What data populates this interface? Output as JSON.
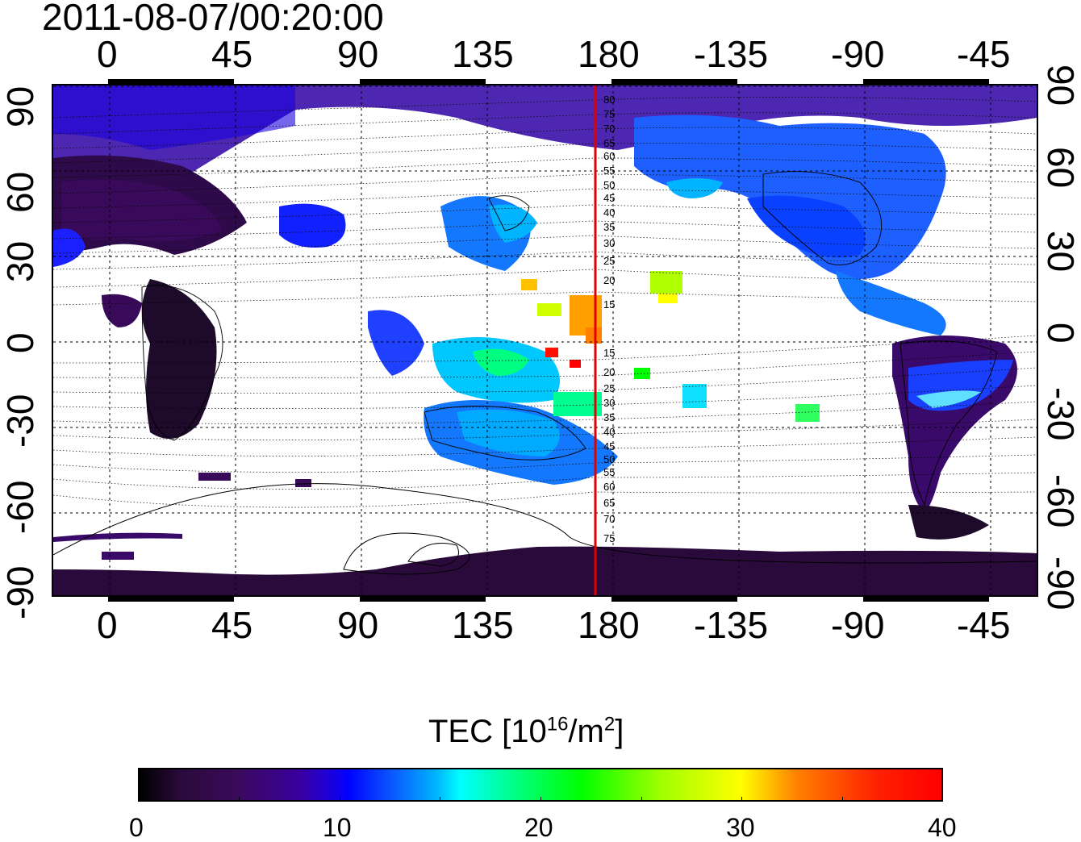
{
  "title": "2011-08-07/00:20:00",
  "top_axis_ticks": [
    "0",
    "45",
    "90",
    "135",
    "180",
    "-135",
    "-90",
    "-45"
  ],
  "bottom_axis_ticks": [
    "0",
    "45",
    "90",
    "135",
    "180",
    "-135",
    "-90",
    "-45"
  ],
  "left_axis_ticks": [
    "90",
    "60",
    "30",
    "0",
    "-30",
    "-60",
    "-90"
  ],
  "right_axis_ticks": [
    "90",
    "60",
    "30",
    "0",
    "-30",
    "-60",
    "-90"
  ],
  "contour_labels": [
    "80",
    "75",
    "70",
    "65",
    "60",
    "55",
    "50",
    "45",
    "40",
    "35",
    "30",
    "25",
    "20",
    "15",
    "15",
    "20",
    "25",
    "30",
    "35",
    "40",
    "45",
    "50",
    "55",
    "60",
    "65",
    "70",
    "75"
  ],
  "colorbar": {
    "title_main": "TEC  [10",
    "title_sup": "16",
    "title_mid": "/m",
    "title_sup2": "2",
    "title_end": "]",
    "ticks": [
      "0",
      "10",
      "20",
      "30",
      "40"
    ],
    "min": 0,
    "max": 40
  },
  "colors": {
    "meridian_line": "#e00000",
    "low_tec": "#2a0a3a",
    "mid_tec": "#0a40ff",
    "high_tec": "#ff0000"
  }
}
